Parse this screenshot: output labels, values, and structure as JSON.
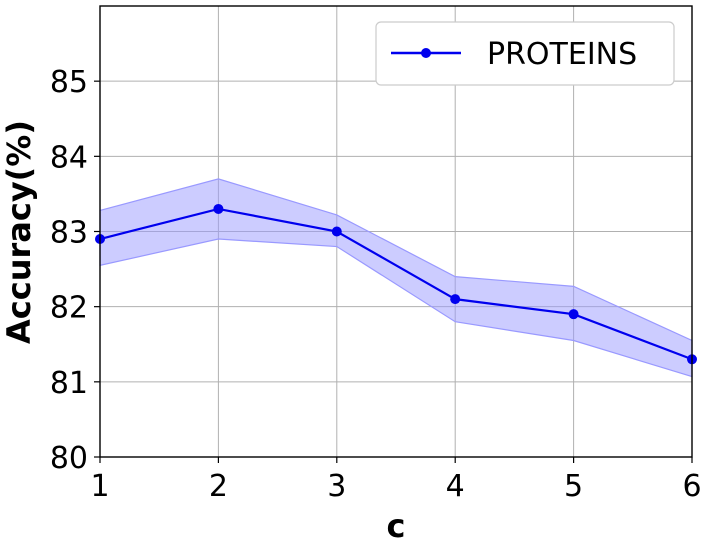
{
  "chart_data": {
    "type": "line",
    "title": "",
    "xlabel": "c",
    "ylabel": "Accuracy(%)",
    "x": [
      1,
      2,
      3,
      4,
      5,
      6
    ],
    "xlim": [
      1,
      6
    ],
    "ylim": [
      80,
      86
    ],
    "xticks": [
      "1",
      "2",
      "3",
      "4",
      "5",
      "6"
    ],
    "yticks": [
      "80",
      "81",
      "82",
      "83",
      "84",
      "85"
    ],
    "grid": true,
    "legend_position": "top-right",
    "series": [
      {
        "name": "PROTEINS",
        "values": [
          82.9,
          83.3,
          83.0,
          82.1,
          81.9,
          81.3
        ],
        "lower": [
          82.55,
          82.9,
          82.8,
          81.8,
          81.55,
          81.07
        ],
        "upper": [
          83.28,
          83.7,
          83.22,
          82.4,
          82.27,
          81.55
        ],
        "color": "#0000ee",
        "band_color": "#9999ff"
      }
    ]
  }
}
